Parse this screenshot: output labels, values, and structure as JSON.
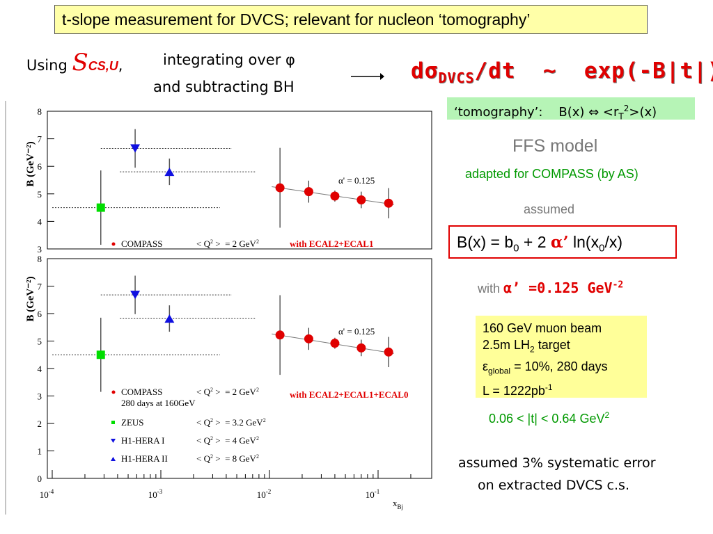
{
  "title": "t-slope measurement for DVCS; relevant for nucleon ‘tomography’",
  "method": {
    "using": "Using",
    "symbol": "S",
    "symbol_sub": "CS,U",
    "comma": ",",
    "line1": "integrating over φ",
    "line2": "and subtracting BH"
  },
  "formula": {
    "d": "d",
    "sigma": "σ",
    "sub": "DVCS",
    "rest": "/dt  ~  exp(-B|t|)"
  },
  "tomography": {
    "label": "‘tomography’:",
    "relation": "B(x) ⇔ <r",
    "sub": "T",
    "sup": "2",
    "tail": ">(x)"
  },
  "model": {
    "name": "FFS model",
    "adapted": "adapted for COMPASS (by AS)",
    "assumed": "assumed"
  },
  "bx_formula": {
    "lhs": "B(x) = b",
    "sub0": "0",
    "mid": " + 2 ",
    "alpha": "α’",
    "ln": " ln(x",
    "sub0b": "0",
    "tail": "/x)"
  },
  "alpha_value": {
    "with": "with",
    "value": "α’ =0.125 GeV",
    "sup": "-2"
  },
  "params": {
    "beam": "160 GeV muon beam",
    "target_pre": "2.5m LH",
    "target_sub": "2",
    "target_post": " target",
    "eps": "ε",
    "eps_sub": "global",
    "eps_post": " = 10%, 280 days",
    "lumi_pre": "L = 1222pb",
    "lumi_sup": "-1"
  },
  "t_range": {
    "text": "0.06 < |t| < 0.64 GeV",
    "sup": "2"
  },
  "systematic": {
    "line1": "assumed  3% systematic error",
    "line2": "on extracted DVCS c.s."
  },
  "chart_data": [
    {
      "type": "scatter",
      "ylabel": "B (GeV⁻²)",
      "xscale": "log",
      "ylim": [
        3,
        8
      ],
      "yticks": [
        "3",
        "4",
        "5",
        "6",
        "7",
        "8"
      ],
      "alpha_label": "α' = 0.125",
      "legend": {
        "compass": "COMPASS",
        "q2_lhs": "< Q",
        "q2_rhs": " >  = 2 GeV",
        "q2_sup": "2",
        "ecal": "with ECAL2+ECAL1"
      },
      "series": [
        {
          "name": "COMPASS",
          "x": [
            0.0125,
            0.023,
            0.04,
            0.07,
            0.125
          ],
          "y": [
            5.22,
            5.08,
            4.92,
            4.78,
            4.66
          ]
        },
        {
          "name": "ZEUS",
          "x": [
            0.00028
          ],
          "y": [
            4.5
          ]
        },
        {
          "name": "H1-HERA I",
          "x": [
            0.00058
          ],
          "y": [
            6.65
          ]
        },
        {
          "name": "H1-HERA II",
          "x": [
            0.0012
          ],
          "y": [
            5.8
          ]
        }
      ]
    },
    {
      "type": "scatter",
      "ylabel": "B (GeV⁻²)",
      "xlabel": "x",
      "xlabel_sub": "Bj",
      "xscale": "log",
      "ylim": [
        0,
        8
      ],
      "yticks": [
        "0",
        "1",
        "2",
        "3",
        "4",
        "5",
        "6",
        "7",
        "8"
      ],
      "xticks": [
        {
          "base": "10",
          "exp": "-4"
        },
        {
          "base": "10",
          "exp": "-3"
        },
        {
          "base": "10",
          "exp": "-2"
        },
        {
          "base": "10",
          "exp": "-1"
        }
      ],
      "alpha_label": "α' = 0.125",
      "legend": {
        "compass": "COMPASS",
        "q2_lhs": "< Q",
        "q2_rhs": " >  = 2 GeV",
        "q2_sup": "2",
        "days": "280 days at 160GeV",
        "ecal": "with ECAL2+ECAL1+ECAL0",
        "zeus": "ZEUS",
        "zeus_q2": " >  = 3.2 GeV",
        "h1a": "H1-HERA I",
        "h1a_q2": " >  = 4 GeV",
        "h1b": "H1-HERA II",
        "h1b_q2": " >  = 8 GeV"
      },
      "series": [
        {
          "name": "COMPASS",
          "x": [
            0.0125,
            0.023,
            0.04,
            0.07,
            0.125
          ],
          "y": [
            5.22,
            5.08,
            4.92,
            4.75,
            4.6
          ]
        },
        {
          "name": "ZEUS",
          "x": [
            0.00028
          ],
          "y": [
            4.5
          ]
        },
        {
          "name": "H1-HERA I",
          "x": [
            0.00058
          ],
          "y": [
            6.68
          ]
        },
        {
          "name": "H1-HERA II",
          "x": [
            0.0012
          ],
          "y": [
            5.82
          ]
        }
      ]
    }
  ],
  "colors": {
    "red": "#e00000",
    "green": "#009900",
    "blue": "#1010e0",
    "zeus": "#00dd00"
  }
}
